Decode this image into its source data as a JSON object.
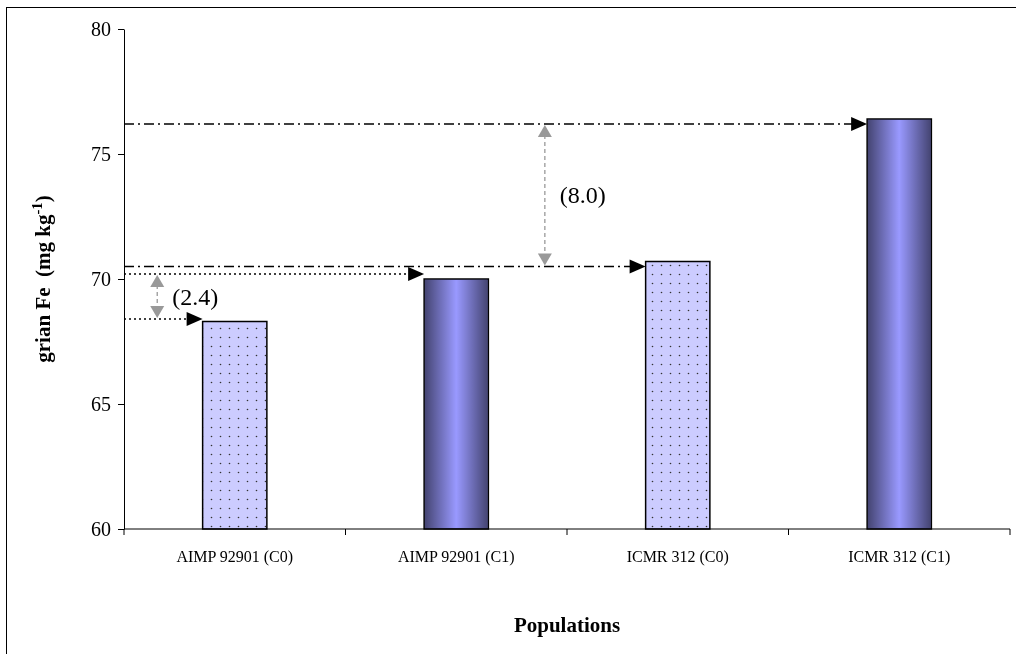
{
  "chart_data": {
    "type": "bar",
    "xlabel": "Populations",
    "ylabel": "grian Fe  (mg kg$^{-1}$)",
    "categories": [
      "AIMP 92901 (C0)",
      "AIMP 92901 (C1)",
      "ICMR 312 (C0)",
      "ICMR 312 (C1)"
    ],
    "values": [
      68.3,
      70.0,
      70.7,
      76.4
    ],
    "colors": [
      "#ccccff",
      "#9999ff",
      "#ccccff",
      "#9999ff"
    ],
    "ylim": [
      60,
      80
    ],
    "yticks": [
      60,
      65,
      70,
      75,
      80
    ],
    "grid": false,
    "ref_lines": [
      {
        "axis": "y",
        "value": 68.4,
        "line_style": "dotted"
      },
      {
        "axis": "y",
        "value": 70.2,
        "line_style": "dotted"
      },
      {
        "axis": "y",
        "value": 70.5,
        "line_style": "dashed"
      },
      {
        "axis": "y",
        "value": 76.2,
        "line_style": "dashed"
      }
    ],
    "annotations": [
      "(2.4)",
      "(8.0)"
    ]
  }
}
